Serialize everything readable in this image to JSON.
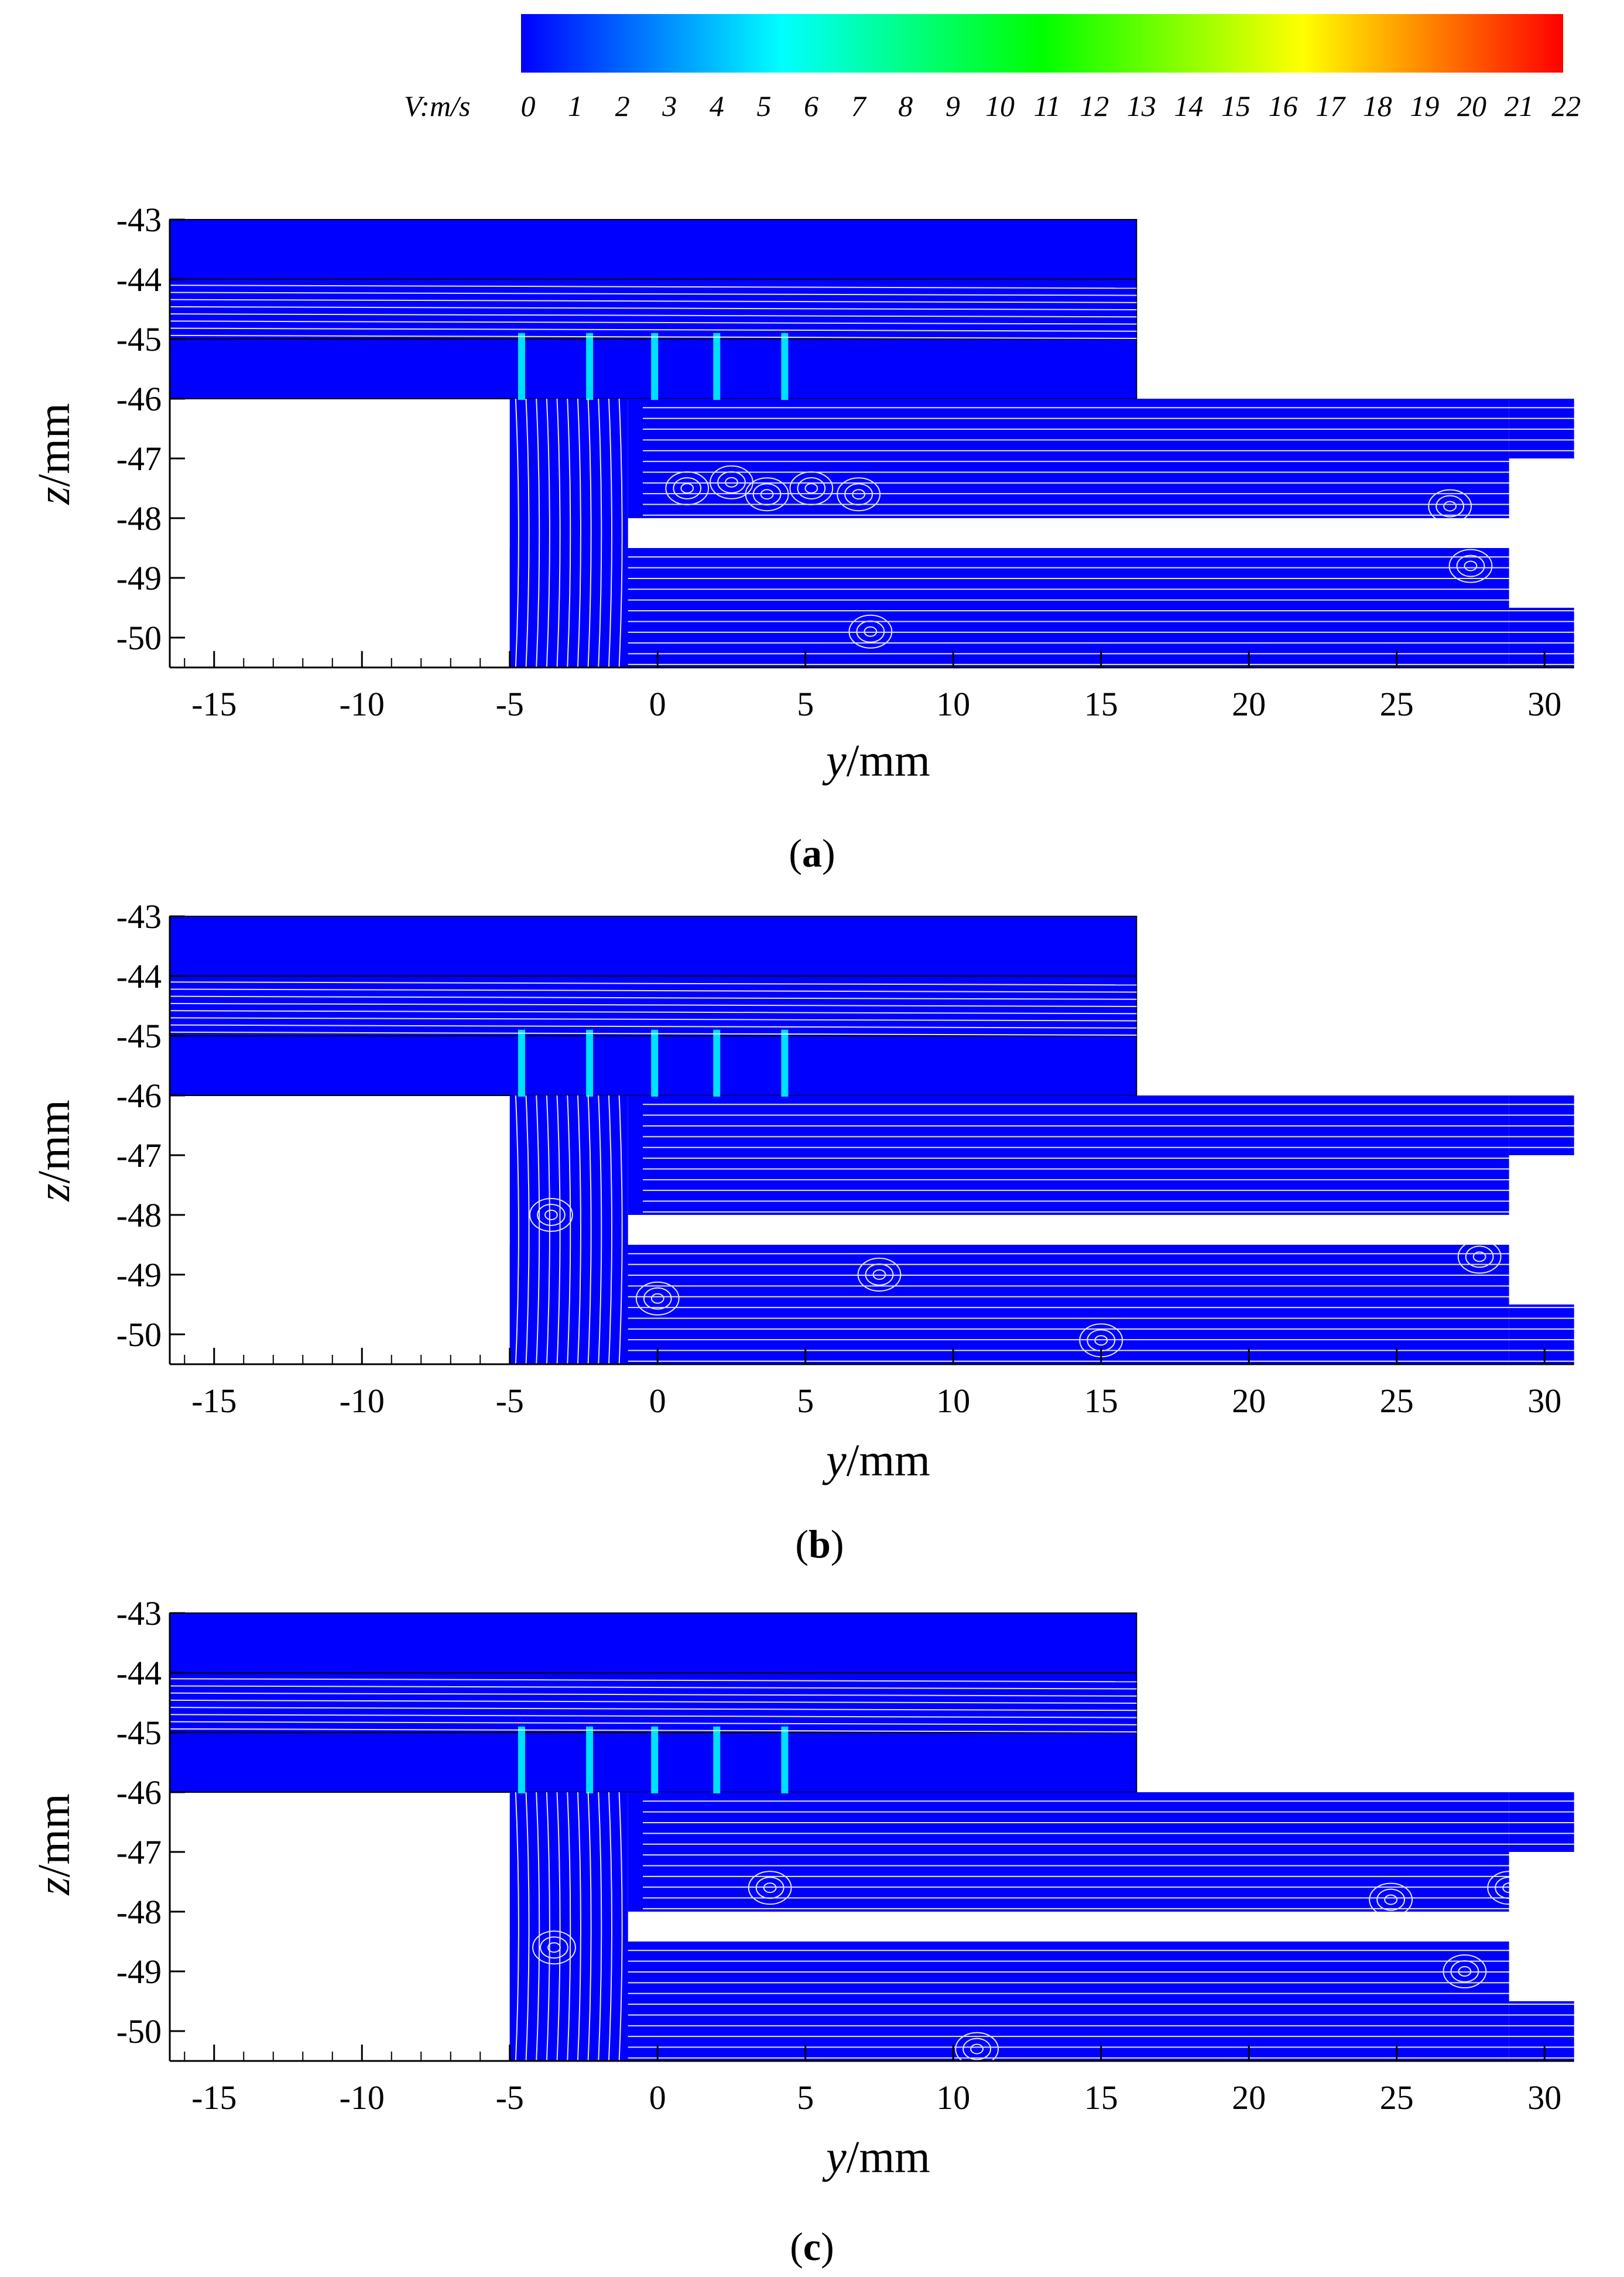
{
  "colorbar": {
    "label": "V:m/s",
    "ticks": [
      "0",
      "1",
      "2",
      "3",
      "4",
      "5",
      "6",
      "7",
      "8",
      "9",
      "10",
      "11",
      "12",
      "13",
      "14",
      "15",
      "16",
      "17",
      "18",
      "19",
      "20",
      "21",
      "22"
    ],
    "range": [
      0,
      22
    ],
    "colors": [
      "#0000ff",
      "#0080ff",
      "#00ffff",
      "#00ff80",
      "#00ff00",
      "#80ff00",
      "#ffff00",
      "#ff8000",
      "#ff0000"
    ]
  },
  "colors": {
    "solid": "#0000ff",
    "streamline": "#ffffff",
    "jet": "#00e0ff"
  },
  "chart_data": [
    {
      "type": "streamline",
      "panel": "a",
      "caption_letter": "a",
      "xlabel_var": "y",
      "xlabel_unit": "/mm",
      "ylabel_var": "z",
      "ylabel_unit": "/mm",
      "xlim": [
        -16.5,
        31
      ],
      "ylim": [
        -50.5,
        -43
      ],
      "xticks": [
        "-15",
        "-10",
        "-5",
        "0",
        "5",
        "10",
        "15",
        "20",
        "25",
        "30"
      ],
      "yticks": [
        "-43",
        "-44",
        "-45",
        "-46",
        "-47",
        "-48",
        "-49",
        "-50"
      ],
      "upper_plate_right_end": 16.2,
      "jet_y": [
        -4.6,
        -2.3,
        -0.1,
        2.0,
        4.3
      ],
      "vortices": [
        [
          1.0,
          -47.5
        ],
        [
          2.5,
          -47.4
        ],
        [
          3.7,
          -47.6
        ],
        [
          5.2,
          -47.5
        ],
        [
          6.8,
          -47.6
        ],
        [
          26.8,
          -47.8
        ],
        [
          7.2,
          -49.9
        ],
        [
          27.5,
          -48.8
        ]
      ]
    },
    {
      "type": "streamline",
      "panel": "b",
      "caption_letter": "b",
      "xlabel_var": "y",
      "xlabel_unit": "/mm",
      "ylabel_var": "z",
      "ylabel_unit": "/mm",
      "xlim": [
        -16.5,
        31
      ],
      "ylim": [
        -50.5,
        -43
      ],
      "xticks": [
        "-15",
        "-10",
        "-5",
        "0",
        "5",
        "10",
        "15",
        "20",
        "25",
        "30"
      ],
      "yticks": [
        "-43",
        "-44",
        "-45",
        "-46",
        "-47",
        "-48",
        "-49",
        "-50"
      ],
      "upper_plate_right_end": 16.2,
      "jet_y": [
        -4.6,
        -2.3,
        -0.1,
        2.0,
        4.3
      ],
      "vortices": [
        [
          -3.6,
          -48.0
        ],
        [
          0.0,
          -49.4
        ],
        [
          7.5,
          -49.0
        ],
        [
          15.0,
          -50.1
        ],
        [
          27.8,
          -48.7
        ]
      ]
    },
    {
      "type": "streamline",
      "panel": "c",
      "caption_letter": "c",
      "xlabel_var": "y",
      "xlabel_unit": "/mm",
      "ylabel_var": "z",
      "ylabel_unit": "/mm",
      "xlim": [
        -16.5,
        31
      ],
      "ylim": [
        -50.5,
        -43
      ],
      "xticks": [
        "-15",
        "-10",
        "-5",
        "0",
        "5",
        "10",
        "15",
        "20",
        "25",
        "30"
      ],
      "yticks": [
        "-43",
        "-44",
        "-45",
        "-46",
        "-47",
        "-48",
        "-49",
        "-50"
      ],
      "upper_plate_right_end": 16.2,
      "jet_y": [
        -4.6,
        -2.3,
        -0.1,
        2.0,
        4.3
      ],
      "vortices": [
        [
          -3.5,
          -48.6
        ],
        [
          3.8,
          -47.6
        ],
        [
          10.8,
          -50.3
        ],
        [
          24.8,
          -47.8
        ],
        [
          27.3,
          -49.0
        ],
        [
          28.8,
          -47.6
        ]
      ]
    }
  ]
}
